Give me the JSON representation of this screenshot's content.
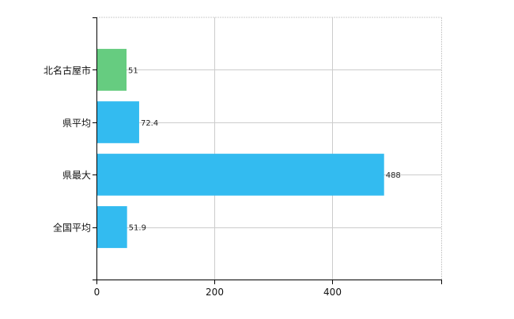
{
  "chart_data": {
    "type": "bar",
    "orientation": "horizontal",
    "title": "",
    "xlabel": "",
    "ylabel": "",
    "categories": [
      "北名古屋市",
      "県平均",
      "県最大",
      "全国平均"
    ],
    "values": [
      51,
      72.4,
      488,
      51.9
    ],
    "value_labels": [
      "51",
      "72.4",
      "488",
      "51.9"
    ],
    "bar_colors": [
      "#66cc80",
      "#33bbf0",
      "#33bbf0",
      "#33bbf0"
    ],
    "xlim": [
      0,
      585
    ],
    "xticks": [
      0,
      200,
      400
    ],
    "xtick_labels": [
      "0",
      "200",
      "400"
    ],
    "grid": true,
    "legend": "none",
    "colors": {
      "axis": "#000000",
      "grid": "#cccccc"
    }
  }
}
